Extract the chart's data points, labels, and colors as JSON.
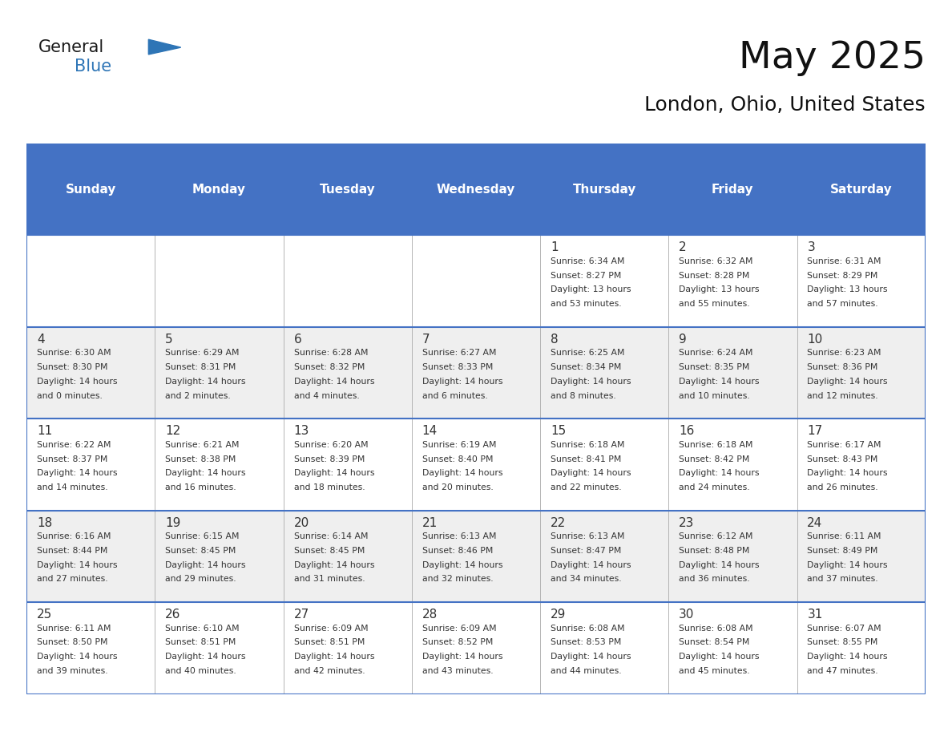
{
  "title": "May 2025",
  "subtitle": "London, Ohio, United States",
  "days_of_week": [
    "Sunday",
    "Monday",
    "Tuesday",
    "Wednesday",
    "Thursday",
    "Friday",
    "Saturday"
  ],
  "header_bg": "#4472C4",
  "header_text": "#FFFFFF",
  "row_bg_white": "#FFFFFF",
  "row_bg_gray": "#EFEFEF",
  "text_color": "#333333",
  "border_color": "#4472C4",
  "divider_color": "#AAAAAA",
  "title_color": "#111111",
  "subtitle_color": "#111111",
  "logo_general_color": "#1a1a1a",
  "logo_blue_color": "#2E75B6",
  "calendar_data": [
    [
      null,
      null,
      null,
      null,
      {
        "day": "1",
        "sunrise": "6:34 AM",
        "sunset": "8:27 PM",
        "daylight": "13 hours",
        "daylight2": "and 53 minutes."
      },
      {
        "day": "2",
        "sunrise": "6:32 AM",
        "sunset": "8:28 PM",
        "daylight": "13 hours",
        "daylight2": "and 55 minutes."
      },
      {
        "day": "3",
        "sunrise": "6:31 AM",
        "sunset": "8:29 PM",
        "daylight": "13 hours",
        "daylight2": "and 57 minutes."
      }
    ],
    [
      {
        "day": "4",
        "sunrise": "6:30 AM",
        "sunset": "8:30 PM",
        "daylight": "14 hours",
        "daylight2": "and 0 minutes."
      },
      {
        "day": "5",
        "sunrise": "6:29 AM",
        "sunset": "8:31 PM",
        "daylight": "14 hours",
        "daylight2": "and 2 minutes."
      },
      {
        "day": "6",
        "sunrise": "6:28 AM",
        "sunset": "8:32 PM",
        "daylight": "14 hours",
        "daylight2": "and 4 minutes."
      },
      {
        "day": "7",
        "sunrise": "6:27 AM",
        "sunset": "8:33 PM",
        "daylight": "14 hours",
        "daylight2": "and 6 minutes."
      },
      {
        "day": "8",
        "sunrise": "6:25 AM",
        "sunset": "8:34 PM",
        "daylight": "14 hours",
        "daylight2": "and 8 minutes."
      },
      {
        "day": "9",
        "sunrise": "6:24 AM",
        "sunset": "8:35 PM",
        "daylight": "14 hours",
        "daylight2": "and 10 minutes."
      },
      {
        "day": "10",
        "sunrise": "6:23 AM",
        "sunset": "8:36 PM",
        "daylight": "14 hours",
        "daylight2": "and 12 minutes."
      }
    ],
    [
      {
        "day": "11",
        "sunrise": "6:22 AM",
        "sunset": "8:37 PM",
        "daylight": "14 hours",
        "daylight2": "and 14 minutes."
      },
      {
        "day": "12",
        "sunrise": "6:21 AM",
        "sunset": "8:38 PM",
        "daylight": "14 hours",
        "daylight2": "and 16 minutes."
      },
      {
        "day": "13",
        "sunrise": "6:20 AM",
        "sunset": "8:39 PM",
        "daylight": "14 hours",
        "daylight2": "and 18 minutes."
      },
      {
        "day": "14",
        "sunrise": "6:19 AM",
        "sunset": "8:40 PM",
        "daylight": "14 hours",
        "daylight2": "and 20 minutes."
      },
      {
        "day": "15",
        "sunrise": "6:18 AM",
        "sunset": "8:41 PM",
        "daylight": "14 hours",
        "daylight2": "and 22 minutes."
      },
      {
        "day": "16",
        "sunrise": "6:18 AM",
        "sunset": "8:42 PM",
        "daylight": "14 hours",
        "daylight2": "and 24 minutes."
      },
      {
        "day": "17",
        "sunrise": "6:17 AM",
        "sunset": "8:43 PM",
        "daylight": "14 hours",
        "daylight2": "and 26 minutes."
      }
    ],
    [
      {
        "day": "18",
        "sunrise": "6:16 AM",
        "sunset": "8:44 PM",
        "daylight": "14 hours",
        "daylight2": "and 27 minutes."
      },
      {
        "day": "19",
        "sunrise": "6:15 AM",
        "sunset": "8:45 PM",
        "daylight": "14 hours",
        "daylight2": "and 29 minutes."
      },
      {
        "day": "20",
        "sunrise": "6:14 AM",
        "sunset": "8:45 PM",
        "daylight": "14 hours",
        "daylight2": "and 31 minutes."
      },
      {
        "day": "21",
        "sunrise": "6:13 AM",
        "sunset": "8:46 PM",
        "daylight": "14 hours",
        "daylight2": "and 32 minutes."
      },
      {
        "day": "22",
        "sunrise": "6:13 AM",
        "sunset": "8:47 PM",
        "daylight": "14 hours",
        "daylight2": "and 34 minutes."
      },
      {
        "day": "23",
        "sunrise": "6:12 AM",
        "sunset": "8:48 PM",
        "daylight": "14 hours",
        "daylight2": "and 36 minutes."
      },
      {
        "day": "24",
        "sunrise": "6:11 AM",
        "sunset": "8:49 PM",
        "daylight": "14 hours",
        "daylight2": "and 37 minutes."
      }
    ],
    [
      {
        "day": "25",
        "sunrise": "6:11 AM",
        "sunset": "8:50 PM",
        "daylight": "14 hours",
        "daylight2": "and 39 minutes."
      },
      {
        "day": "26",
        "sunrise": "6:10 AM",
        "sunset": "8:51 PM",
        "daylight": "14 hours",
        "daylight2": "and 40 minutes."
      },
      {
        "day": "27",
        "sunrise": "6:09 AM",
        "sunset": "8:51 PM",
        "daylight": "14 hours",
        "daylight2": "and 42 minutes."
      },
      {
        "day": "28",
        "sunrise": "6:09 AM",
        "sunset": "8:52 PM",
        "daylight": "14 hours",
        "daylight2": "and 43 minutes."
      },
      {
        "day": "29",
        "sunrise": "6:08 AM",
        "sunset": "8:53 PM",
        "daylight": "14 hours",
        "daylight2": "and 44 minutes."
      },
      {
        "day": "30",
        "sunrise": "6:08 AM",
        "sunset": "8:54 PM",
        "daylight": "14 hours",
        "daylight2": "and 45 minutes."
      },
      {
        "day": "31",
        "sunrise": "6:07 AM",
        "sunset": "8:55 PM",
        "daylight": "14 hours",
        "daylight2": "and 47 minutes."
      }
    ]
  ]
}
